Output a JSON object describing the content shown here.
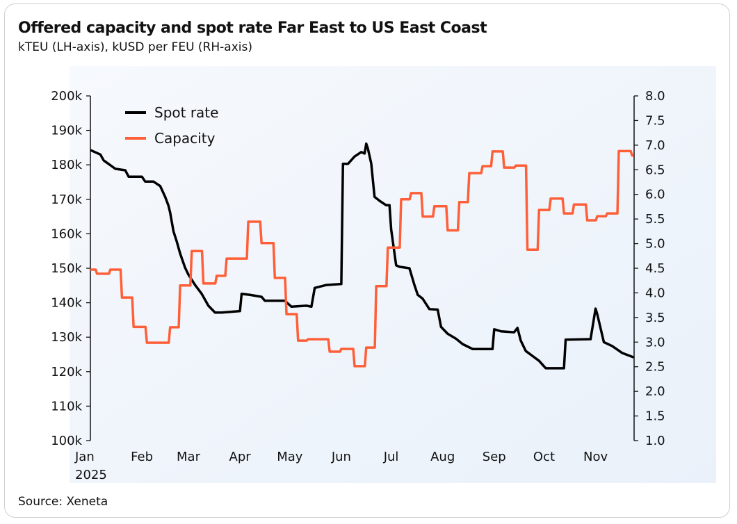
{
  "header": {
    "title": "Offered capacity and spot rate Far East to US East Coast",
    "subtitle": "kTEU (LH-axis), kUSD per FEU (RH-axis)"
  },
  "footer": {
    "source": "Source: Xeneta"
  },
  "chart_data": {
    "type": "line",
    "title": "Offered capacity and spot rate Far East to US East Coast",
    "subtitle": "kTEU (LH-axis), kUSD per FEU (RH-axis)",
    "legend_position": "top-left",
    "grid": false,
    "x_range": [
      "2025-01-01",
      "2025-11-24"
    ],
    "x_ticks": [
      {
        "date": "2025-01-01",
        "label": "Jan",
        "sublabel": "2025"
      },
      {
        "date": "2025-02-01",
        "label": "Feb"
      },
      {
        "date": "2025-03-01",
        "label": "Mar"
      },
      {
        "date": "2025-04-01",
        "label": "Apr"
      },
      {
        "date": "2025-05-01",
        "label": "May"
      },
      {
        "date": "2025-06-01",
        "label": "Jun"
      },
      {
        "date": "2025-07-01",
        "label": "Jul"
      },
      {
        "date": "2025-08-01",
        "label": "Aug"
      },
      {
        "date": "2025-09-01",
        "label": "Sep"
      },
      {
        "date": "2025-10-01",
        "label": "Oct"
      },
      {
        "date": "2025-11-01",
        "label": "Nov"
      }
    ],
    "y_left": {
      "range": [
        100,
        200
      ],
      "ticks": [
        100,
        110,
        120,
        130,
        140,
        150,
        160,
        170,
        180,
        190,
        200
      ],
      "tick_labels": [
        "100k",
        "110k",
        "120k",
        "130k",
        "140k",
        "150k",
        "160k",
        "170k",
        "180k",
        "190k",
        "200k"
      ]
    },
    "y_right": {
      "range": [
        1.0,
        8.0
      ],
      "ticks": [
        1.0,
        1.5,
        2.0,
        2.5,
        3.0,
        3.5,
        4.0,
        4.5,
        5.0,
        5.5,
        6.0,
        6.5,
        7.0,
        7.5,
        8.0
      ],
      "tick_labels": [
        "1.0",
        "1.5",
        "2.0",
        "2.5",
        "3.0",
        "3.5",
        "4.0",
        "4.5",
        "5.0",
        "5.5",
        "6.0",
        "6.5",
        "7.0",
        "7.5",
        "8.0"
      ]
    },
    "series": [
      {
        "name": "Spot rate",
        "axis": "right",
        "color": "#000000",
        "points": [
          [
            "2025-01-01",
            6.9
          ],
          [
            "2025-01-07",
            6.81
          ],
          [
            "2025-01-09",
            6.69
          ],
          [
            "2025-01-16",
            6.52
          ],
          [
            "2025-01-22",
            6.49
          ],
          [
            "2025-01-24",
            6.36
          ],
          [
            "2025-02-01",
            6.36
          ],
          [
            "2025-02-03",
            6.26
          ],
          [
            "2025-02-08",
            6.26
          ],
          [
            "2025-02-12",
            6.17
          ],
          [
            "2025-02-15",
            5.95
          ],
          [
            "2025-02-17",
            5.77
          ],
          [
            "2025-02-18",
            5.63
          ],
          [
            "2025-02-20",
            5.25
          ],
          [
            "2025-02-22",
            5.04
          ],
          [
            "2025-02-24",
            4.8
          ],
          [
            "2025-02-27",
            4.51
          ],
          [
            "2025-03-01",
            4.37
          ],
          [
            "2025-03-05",
            4.16
          ],
          [
            "2025-03-09",
            3.98
          ],
          [
            "2025-03-13",
            3.74
          ],
          [
            "2025-03-17",
            3.6
          ],
          [
            "2025-03-21",
            3.6
          ],
          [
            "2025-04-01",
            3.63
          ],
          [
            "2025-04-02",
            3.98
          ],
          [
            "2025-04-07",
            3.96
          ],
          [
            "2025-04-14",
            3.92
          ],
          [
            "2025-04-16",
            3.84
          ],
          [
            "2025-04-28",
            3.84
          ],
          [
            "2025-05-02",
            3.72
          ],
          [
            "2025-05-11",
            3.74
          ],
          [
            "2025-05-14",
            3.72
          ],
          [
            "2025-05-16",
            4.1
          ],
          [
            "2025-05-23",
            4.16
          ],
          [
            "2025-06-01",
            4.18
          ],
          [
            "2025-06-02",
            6.62
          ],
          [
            "2025-06-05",
            6.62
          ],
          [
            "2025-06-09",
            6.77
          ],
          [
            "2025-06-13",
            6.86
          ],
          [
            "2025-06-15",
            6.83
          ],
          [
            "2025-06-16",
            7.03
          ],
          [
            "2025-06-17",
            6.93
          ],
          [
            "2025-06-19",
            6.63
          ],
          [
            "2025-06-21",
            5.95
          ],
          [
            "2025-06-24",
            5.87
          ],
          [
            "2025-06-28",
            5.78
          ],
          [
            "2025-06-30",
            5.78
          ],
          [
            "2025-07-01",
            5.29
          ],
          [
            "2025-07-04",
            4.56
          ],
          [
            "2025-07-06",
            4.53
          ],
          [
            "2025-07-12",
            4.5
          ],
          [
            "2025-07-15",
            4.16
          ],
          [
            "2025-07-17",
            3.96
          ],
          [
            "2025-07-20",
            3.88
          ],
          [
            "2025-07-24",
            3.67
          ],
          [
            "2025-07-29",
            3.66
          ],
          [
            "2025-07-31",
            3.31
          ],
          [
            "2025-08-04",
            3.17
          ],
          [
            "2025-08-09",
            3.07
          ],
          [
            "2025-08-13",
            2.96
          ],
          [
            "2025-08-19",
            2.86
          ],
          [
            "2025-08-31",
            2.86
          ],
          [
            "2025-09-01",
            3.26
          ],
          [
            "2025-09-05",
            3.22
          ],
          [
            "2025-09-13",
            3.2
          ],
          [
            "2025-09-15",
            3.29
          ],
          [
            "2025-09-17",
            3.03
          ],
          [
            "2025-09-20",
            2.82
          ],
          [
            "2025-09-24",
            2.72
          ],
          [
            "2025-09-28",
            2.62
          ],
          [
            "2025-10-02",
            2.47
          ],
          [
            "2025-10-13",
            2.47
          ],
          [
            "2025-10-14",
            3.05
          ],
          [
            "2025-10-29",
            3.06
          ],
          [
            "2025-11-01",
            3.68
          ],
          [
            "2025-11-02",
            3.57
          ],
          [
            "2025-11-06",
            3.0
          ],
          [
            "2025-11-11",
            2.92
          ],
          [
            "2025-11-17",
            2.78
          ],
          [
            "2025-11-24",
            2.69
          ]
        ]
      },
      {
        "name": "Capacity",
        "axis": "left",
        "color": "#ff5f38",
        "step": true,
        "points": [
          [
            "2025-01-01",
            149.6
          ],
          [
            "2025-01-05",
            148.4
          ],
          [
            "2025-01-13",
            149.6
          ],
          [
            "2025-01-20",
            141.5
          ],
          [
            "2025-01-27",
            133.0
          ],
          [
            "2025-02-04",
            128.4
          ],
          [
            "2025-02-18",
            132.9
          ],
          [
            "2025-02-24",
            145.0
          ],
          [
            "2025-03-03",
            155.0
          ],
          [
            "2025-03-10",
            145.6
          ],
          [
            "2025-03-18",
            147.8
          ],
          [
            "2025-03-24",
            152.8
          ],
          [
            "2025-04-06",
            163.5
          ],
          [
            "2025-04-14",
            157.3
          ],
          [
            "2025-04-22",
            147.2
          ],
          [
            "2025-04-29",
            136.7
          ],
          [
            "2025-05-06",
            129.0
          ],
          [
            "2025-05-12",
            129.4
          ],
          [
            "2025-05-25",
            125.8
          ],
          [
            "2025-06-01",
            126.6
          ],
          [
            "2025-06-09",
            121.6
          ],
          [
            "2025-06-16",
            127.0
          ],
          [
            "2025-06-22",
            144.8
          ],
          [
            "2025-06-29",
            156.0
          ],
          [
            "2025-07-07",
            170.0
          ],
          [
            "2025-07-13",
            171.8
          ],
          [
            "2025-07-20",
            165.0
          ],
          [
            "2025-07-27",
            168.0
          ],
          [
            "2025-08-04",
            161.0
          ],
          [
            "2025-08-11",
            169.2
          ],
          [
            "2025-08-17",
            177.6
          ],
          [
            "2025-08-25",
            179.6
          ],
          [
            "2025-08-31",
            183.9
          ],
          [
            "2025-09-07",
            179.2
          ],
          [
            "2025-09-14",
            179.8
          ],
          [
            "2025-09-21",
            155.4
          ],
          [
            "2025-09-28",
            166.9
          ],
          [
            "2025-10-05",
            170.2
          ],
          [
            "2025-10-13",
            165.9
          ],
          [
            "2025-10-19",
            168.5
          ],
          [
            "2025-10-27",
            163.9
          ],
          [
            "2025-11-02",
            165.1
          ],
          [
            "2025-11-08",
            165.9
          ],
          [
            "2025-11-15",
            184.0
          ],
          [
            "2025-11-23",
            182.7
          ],
          [
            "2025-11-24",
            182.7
          ]
        ]
      }
    ]
  }
}
